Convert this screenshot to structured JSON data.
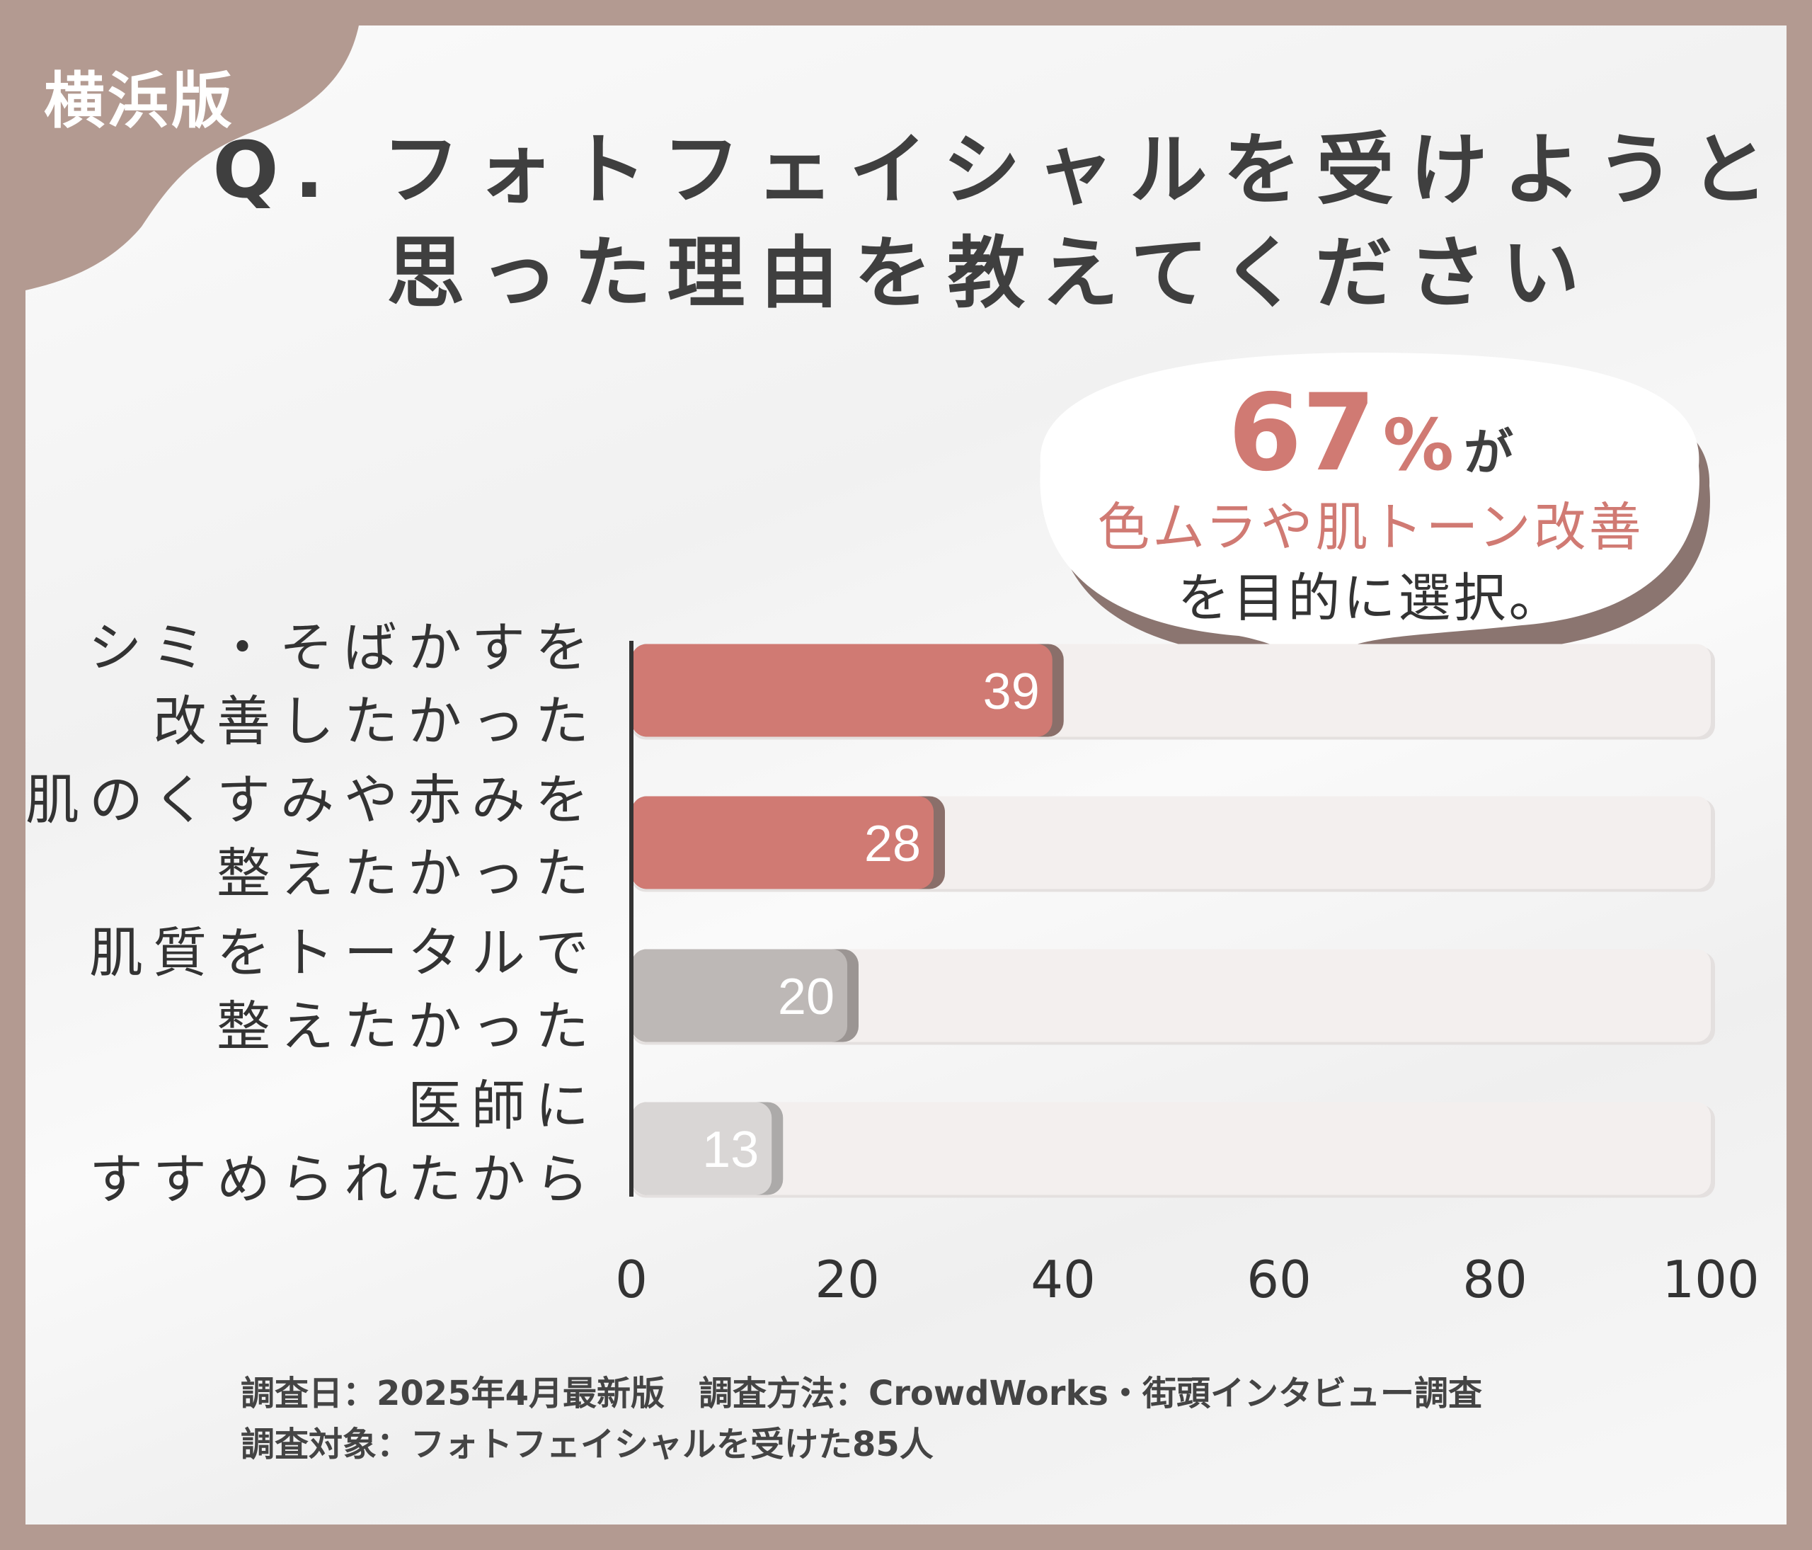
{
  "badge": "横浜版",
  "title": {
    "line1": "Q. フォトフェイシャルを受けようと",
    "line2": "思った理由を教えてください"
  },
  "callout": {
    "value": "67",
    "unit": "%",
    "particle": "が",
    "line2": "色ムラや肌トーン改善",
    "line3": "を目的に選択。"
  },
  "chart_data": {
    "type": "bar",
    "orientation": "horizontal",
    "categories": [
      [
        "シミ・そばかすを",
        "改善したかった"
      ],
      [
        "肌のくすみや赤みを",
        "整えたかった"
      ],
      [
        "肌質をトータルで",
        "整えたかった"
      ],
      [
        "医師に",
        "すすめられたから"
      ]
    ],
    "values": [
      39,
      28,
      20,
      13
    ],
    "xlim": [
      0,
      100
    ],
    "xticks": [
      "0",
      "20",
      "40",
      "60",
      "80",
      "100"
    ],
    "grid": false,
    "colors": [
      "#d07a73",
      "#d07a73",
      "#bdb8b6",
      "#d9d6d5"
    ],
    "shadow_colors": [
      "#8a6f6a",
      "#8a6f6a",
      "#9b9593",
      "#acaaa9"
    ],
    "track_color": "#f3efee"
  },
  "footer": {
    "line1": "調査日：2025年4月最新版　調査方法：CrowdWorks・街頭インタビュー調査",
    "line2": "調査対象：フォトフェイシャルを受けた85人"
  }
}
